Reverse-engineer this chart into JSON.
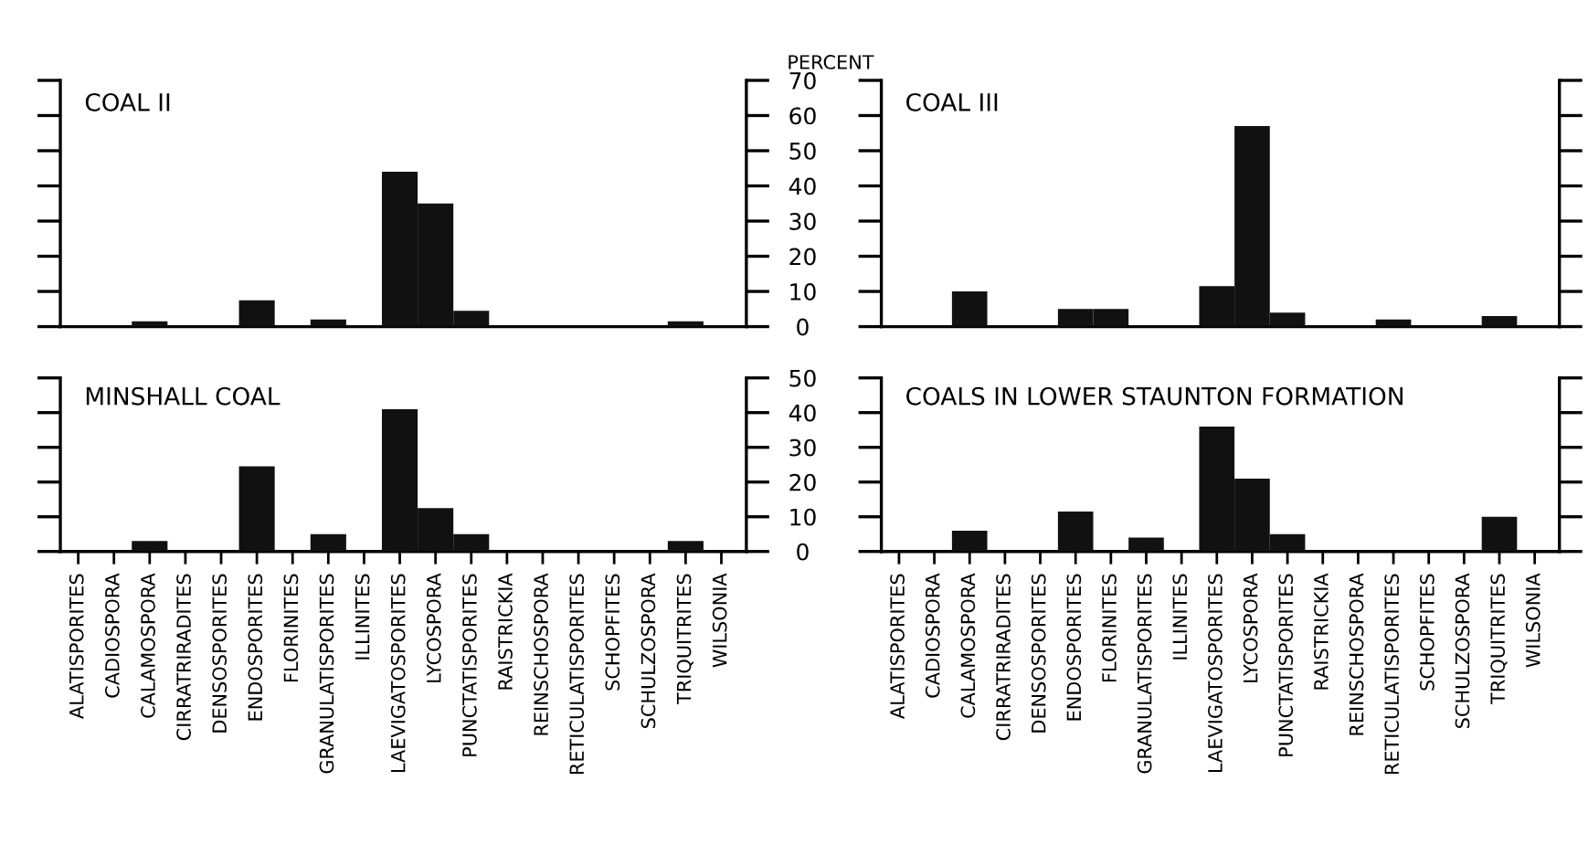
{
  "chart_data": [
    {
      "type": "bar",
      "title": "COAL II",
      "categories": [
        "ALATISPORITES",
        "CADIOSPORA",
        "CALAMOSPORA",
        "CIRRATRIRADITES",
        "DENSOSPORITES",
        "ENDOSPORITES",
        "FLORINITES",
        "GRANULATISPORITES",
        "ILLINITES",
        "LAEVIGATOSPORITES",
        "LYCOSPORA",
        "PUNCTATISPORITES",
        "RAISTRICKIA",
        "REINSCHOSPORA",
        "RETICULATISPORITES",
        "SCHOPFITES",
        "SCHULZOSPORA",
        "TRIQUITRITES",
        "WILSONIA"
      ],
      "values": [
        0,
        0,
        1.5,
        0,
        0,
        7.5,
        0,
        2,
        0,
        44,
        35,
        4.5,
        0,
        0,
        0,
        0,
        0,
        1.5,
        0
      ],
      "color": "#111111",
      "ylim": [
        0,
        70
      ],
      "yticks": [
        0,
        10,
        20,
        30,
        40,
        50,
        60,
        70
      ],
      "tick_labels": false
    },
    {
      "type": "bar",
      "title": "COAL III",
      "ylabel": "PERCENT",
      "categories": [
        "ALATISPORITES",
        "CADIOSPORA",
        "CALAMOSPORA",
        "CIRRATRIRADITES",
        "DENSOSPORITES",
        "ENDOSPORITES",
        "FLORINITES",
        "GRANULATISPORITES",
        "ILLINITES",
        "LAEVIGATOSPORITES",
        "LYCOSPORA",
        "PUNCTATISPORITES",
        "RAISTRICKIA",
        "REINSCHOSPORA",
        "RETICULATISPORITES",
        "SCHOPFITES",
        "SCHULZOSPORA",
        "TRIQUITRITES",
        "WILSONIA"
      ],
      "values": [
        0,
        0,
        10,
        0,
        0,
        5,
        5,
        0,
        0,
        11.5,
        57,
        4,
        0,
        0,
        2,
        0,
        0,
        3,
        0
      ],
      "color": "#111111",
      "ylim": [
        0,
        70
      ],
      "yticks": [
        0,
        10,
        20,
        30,
        40,
        50,
        60,
        70
      ],
      "tick_labels": "y"
    },
    {
      "type": "bar",
      "title": "MINSHALL COAL",
      "categories": [
        "ALATISPORITES",
        "CADIOSPORA",
        "CALAMOSPORA",
        "CIRRATRIRADITES",
        "DENSOSPORITES",
        "ENDOSPORITES",
        "FLORINITES",
        "GRANULATISPORITES",
        "ILLINITES",
        "LAEVIGATOSPORITES",
        "LYCOSPORA",
        "PUNCTATISPORITES",
        "RAISTRICKIA",
        "REINSCHOSPORA",
        "RETICULATISPORITES",
        "SCHOPFITES",
        "SCHULZOSPORA",
        "TRIQUITRITES",
        "WILSONIA"
      ],
      "values": [
        0,
        0,
        3,
        0,
        0,
        24.5,
        0,
        5,
        0,
        41,
        12.5,
        5,
        0,
        0,
        0,
        0,
        0,
        3,
        0
      ],
      "color": "#111111",
      "ylim": [
        0,
        50
      ],
      "yticks": [
        0,
        10,
        20,
        30,
        40,
        50
      ],
      "tick_labels": "x"
    },
    {
      "type": "bar",
      "title": "COALS IN LOWER STAUNTON FORMATION",
      "categories": [
        "ALATISPORITES",
        "CADIOSPORA",
        "CALAMOSPORA",
        "CIRRATRIRADITES",
        "DENSOSPORITES",
        "ENDOSPORITES",
        "FLORINITES",
        "GRANULATISPORITES",
        "ILLINITES",
        "LAEVIGATOSPORITES",
        "LYCOSPORA",
        "PUNCTATISPORITES",
        "RAISTRICKIA",
        "REINSCHOSPORA",
        "RETICULATISPORITES",
        "SCHOPFITES",
        "SCHULZOSPORA",
        "TRIQUITRITES",
        "WILSONIA"
      ],
      "values": [
        0,
        0,
        6,
        0,
        0,
        11.5,
        0,
        4,
        0,
        36,
        21,
        5,
        0,
        0,
        0,
        0,
        0,
        10,
        0
      ],
      "color": "#111111",
      "ylim": [
        0,
        50
      ],
      "yticks": [
        0,
        10,
        20,
        30,
        40,
        50
      ]
    }
  ]
}
